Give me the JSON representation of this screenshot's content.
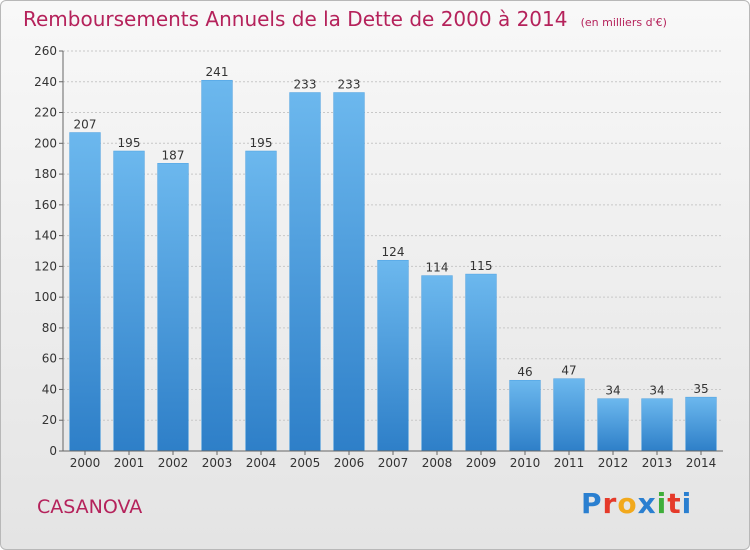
{
  "header": {
    "title": "Remboursements Annuels de la Dette de 2000 à 2014",
    "unit": "(en milliers d'€)"
  },
  "footer": {
    "city": "CASANOVA",
    "logo_letters": [
      "P",
      "r",
      "o",
      "x",
      "i",
      "t",
      "i"
    ],
    "logo_colors": [
      "#2a7fd0",
      "#e53a2a",
      "#f2a91c",
      "#2a7fd0",
      "#3fae3a",
      "#e53a2a",
      "#2a7fd0"
    ]
  },
  "chart_data": {
    "type": "bar",
    "title": "Remboursements Annuels de la Dette de 2000 à 2014",
    "unit": "(en milliers d'€)",
    "categories": [
      "2000",
      "2001",
      "2002",
      "2003",
      "2004",
      "2005",
      "2006",
      "2007",
      "2008",
      "2009",
      "2010",
      "2011",
      "2012",
      "2013",
      "2014"
    ],
    "values": [
      207,
      195,
      187,
      241,
      195,
      233,
      233,
      124,
      114,
      115,
      46,
      47,
      34,
      34,
      35
    ],
    "ylim": [
      0,
      260
    ],
    "ytick_step": 20,
    "grid": true,
    "bar_color": "#4a9fe0",
    "bar_color_light": "#6cb8ee",
    "bar_color_dark": "#2e7fc8"
  }
}
